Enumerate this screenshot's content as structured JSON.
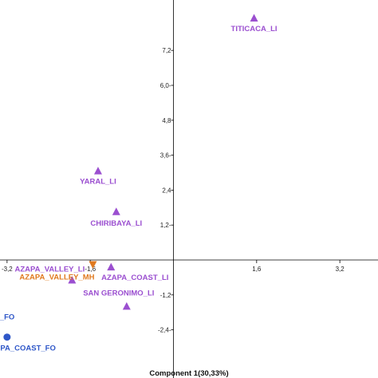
{
  "chart_data": {
    "type": "scatter",
    "title": "",
    "xlabel": "Component 1(30,33%)",
    "ylabel": "",
    "xlim": [
      -3.55,
      4.7
    ],
    "ylim": [
      -3.55,
      8.45
    ],
    "grid": false,
    "x_ticks": [
      {
        "value": -3.2,
        "label": "-3,2"
      },
      {
        "value": -1.6,
        "label": "-1,6"
      },
      {
        "value": 1.6,
        "label": "1,6"
      },
      {
        "value": 3.2,
        "label": "3,2"
      }
    ],
    "y_ticks": [
      {
        "value": 7.2,
        "label": "7,2"
      },
      {
        "value": 6.0,
        "label": "6,0-"
      },
      {
        "value": 4.8,
        "label": "4,8"
      },
      {
        "value": 3.6,
        "label": "3,6-"
      },
      {
        "value": 2.4,
        "label": "2,4"
      },
      {
        "value": 1.2,
        "label": "1,2-"
      },
      {
        "value": -1.2,
        "label": "-1,2"
      },
      {
        "value": -2.4,
        "label": "-2,4-"
      }
    ],
    "points": [
      {
        "label": "TITICACA_LI",
        "x": 1.55,
        "y": 8.3,
        "marker": "triangle-up",
        "color": "#9b4fd0"
      },
      {
        "label": "YARAL_LI",
        "x": -1.45,
        "y": 3.05,
        "marker": "triangle-up",
        "color": "#9b4fd0"
      },
      {
        "label": "CHIRIBAYA_LI",
        "x": -1.1,
        "y": 1.65,
        "marker": "triangle-up",
        "color": "#9b4fd0"
      },
      {
        "label": "AZAPA_VALLEY_LI",
        "x": -1.95,
        "y": -0.7,
        "marker": "triangle-up",
        "color": "#9b4fd0"
      },
      {
        "label": "AZAPA_VALLEY_MH",
        "x": -1.55,
        "y": -0.15,
        "marker": "triangle-down",
        "color": "#e07a1f"
      },
      {
        "label": "AZAPA_COAST_LI",
        "x": -1.2,
        "y": -0.25,
        "marker": "triangle-up",
        "color": "#9b4fd0"
      },
      {
        "label": "SAN GERONIMO_LI",
        "x": -0.9,
        "y": -1.6,
        "marker": "triangle-up",
        "color": "#9b4fd0"
      },
      {
        "label": "AZAPA_VALLEY_FO",
        "x": -3.5,
        "y": -2.1,
        "marker": "circle",
        "color": "#2f57c8"
      },
      {
        "label": "AZAPA_COAST_FO",
        "x": -3.2,
        "y": -2.65,
        "marker": "circle",
        "color": "#2f57c8"
      }
    ],
    "visible_point_labels": [
      "TITICACA_LI",
      "YARAL_LI",
      "CHIRIBAYA_LI",
      "AZAPA_VALLEY_LI",
      "AZAPA_VALLEY_MH",
      "AZAPA_COAST_LI",
      "SAN GERONIMO_LI",
      "LLEY_FO",
      "APA_COAST_FO"
    ]
  }
}
